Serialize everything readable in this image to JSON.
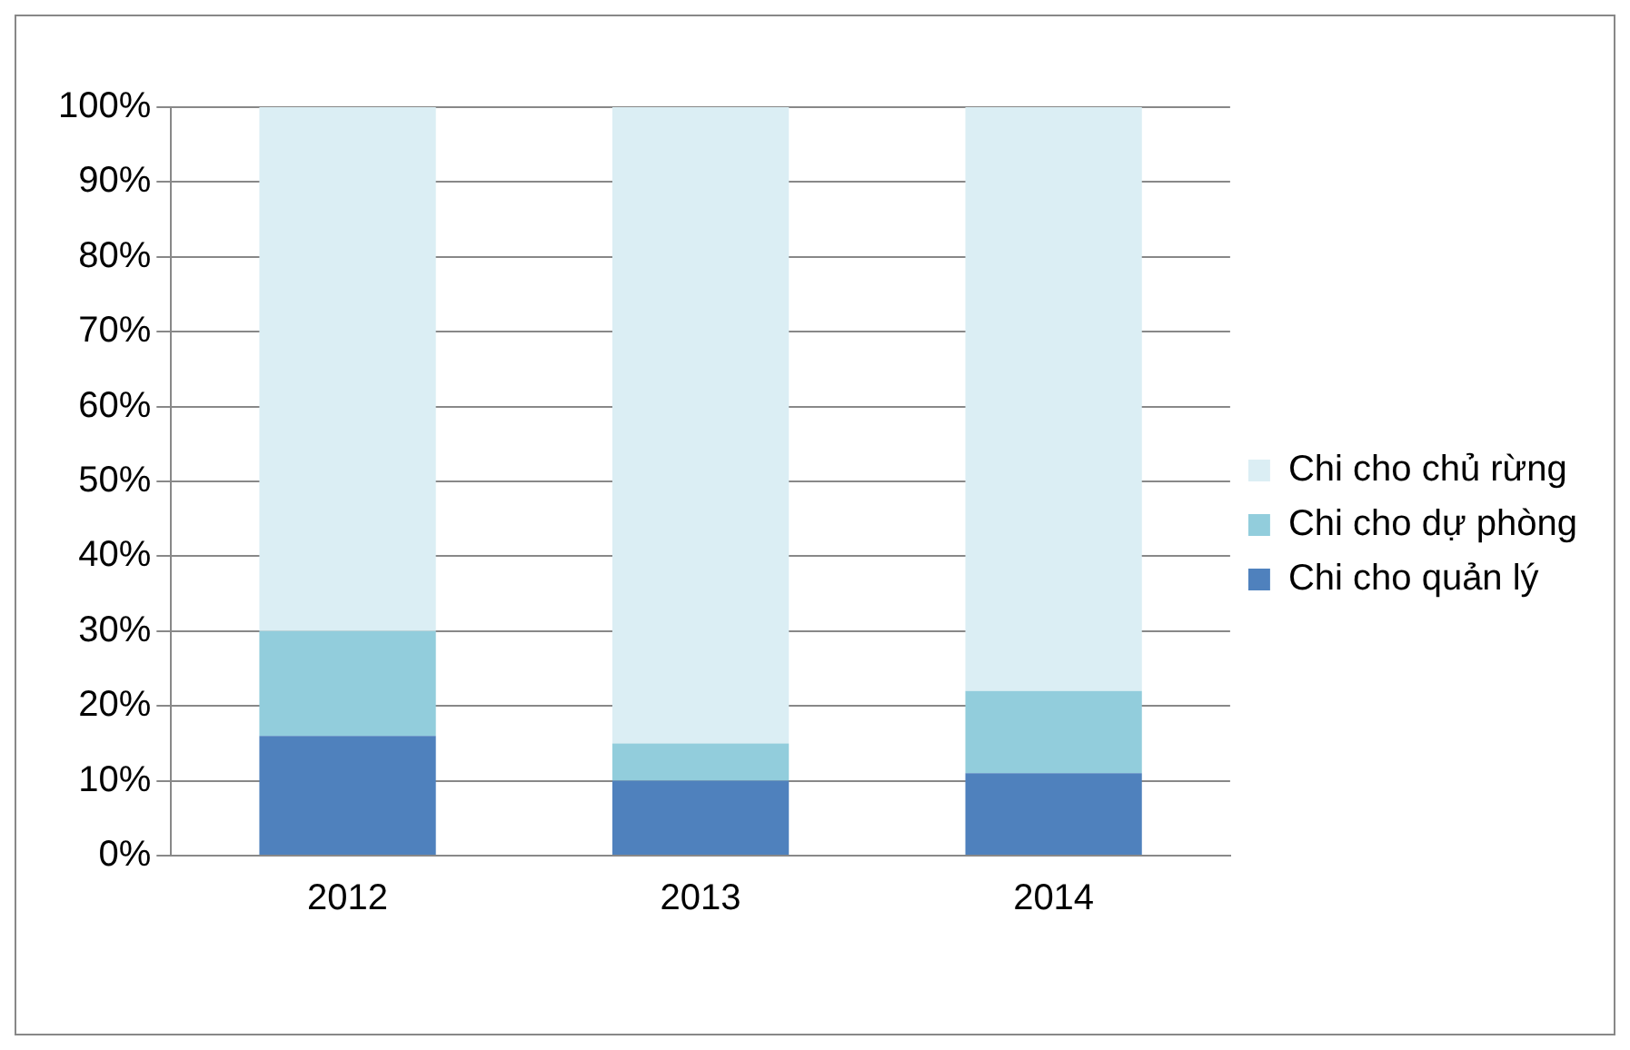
{
  "chart_data": {
    "type": "bar",
    "stacked": true,
    "categories": [
      "2012",
      "2013",
      "2014"
    ],
    "series": [
      {
        "name": "Chi cho quản lý",
        "color": "#4f81bd",
        "values": [
          16,
          10,
          11
        ]
      },
      {
        "name": "Chi cho dự phòng",
        "color": "#92cddc",
        "values": [
          14,
          5,
          11
        ]
      },
      {
        "name": "Chi cho chủ rừng",
        "color": "#dbeef4",
        "values": [
          70,
          85,
          78
        ]
      }
    ],
    "ylim": [
      0,
      100
    ],
    "yticks": [
      {
        "value": 0,
        "label": "0%"
      },
      {
        "value": 10,
        "label": "10%"
      },
      {
        "value": 20,
        "label": "20%"
      },
      {
        "value": 30,
        "label": "30%"
      },
      {
        "value": 40,
        "label": "40%"
      },
      {
        "value": 50,
        "label": "50%"
      },
      {
        "value": 60,
        "label": "60%"
      },
      {
        "value": 70,
        "label": "70%"
      },
      {
        "value": 80,
        "label": "80%"
      },
      {
        "value": 90,
        "label": "90%"
      },
      {
        "value": 100,
        "label": "100%"
      }
    ],
    "grid": "y",
    "legend": "right"
  }
}
